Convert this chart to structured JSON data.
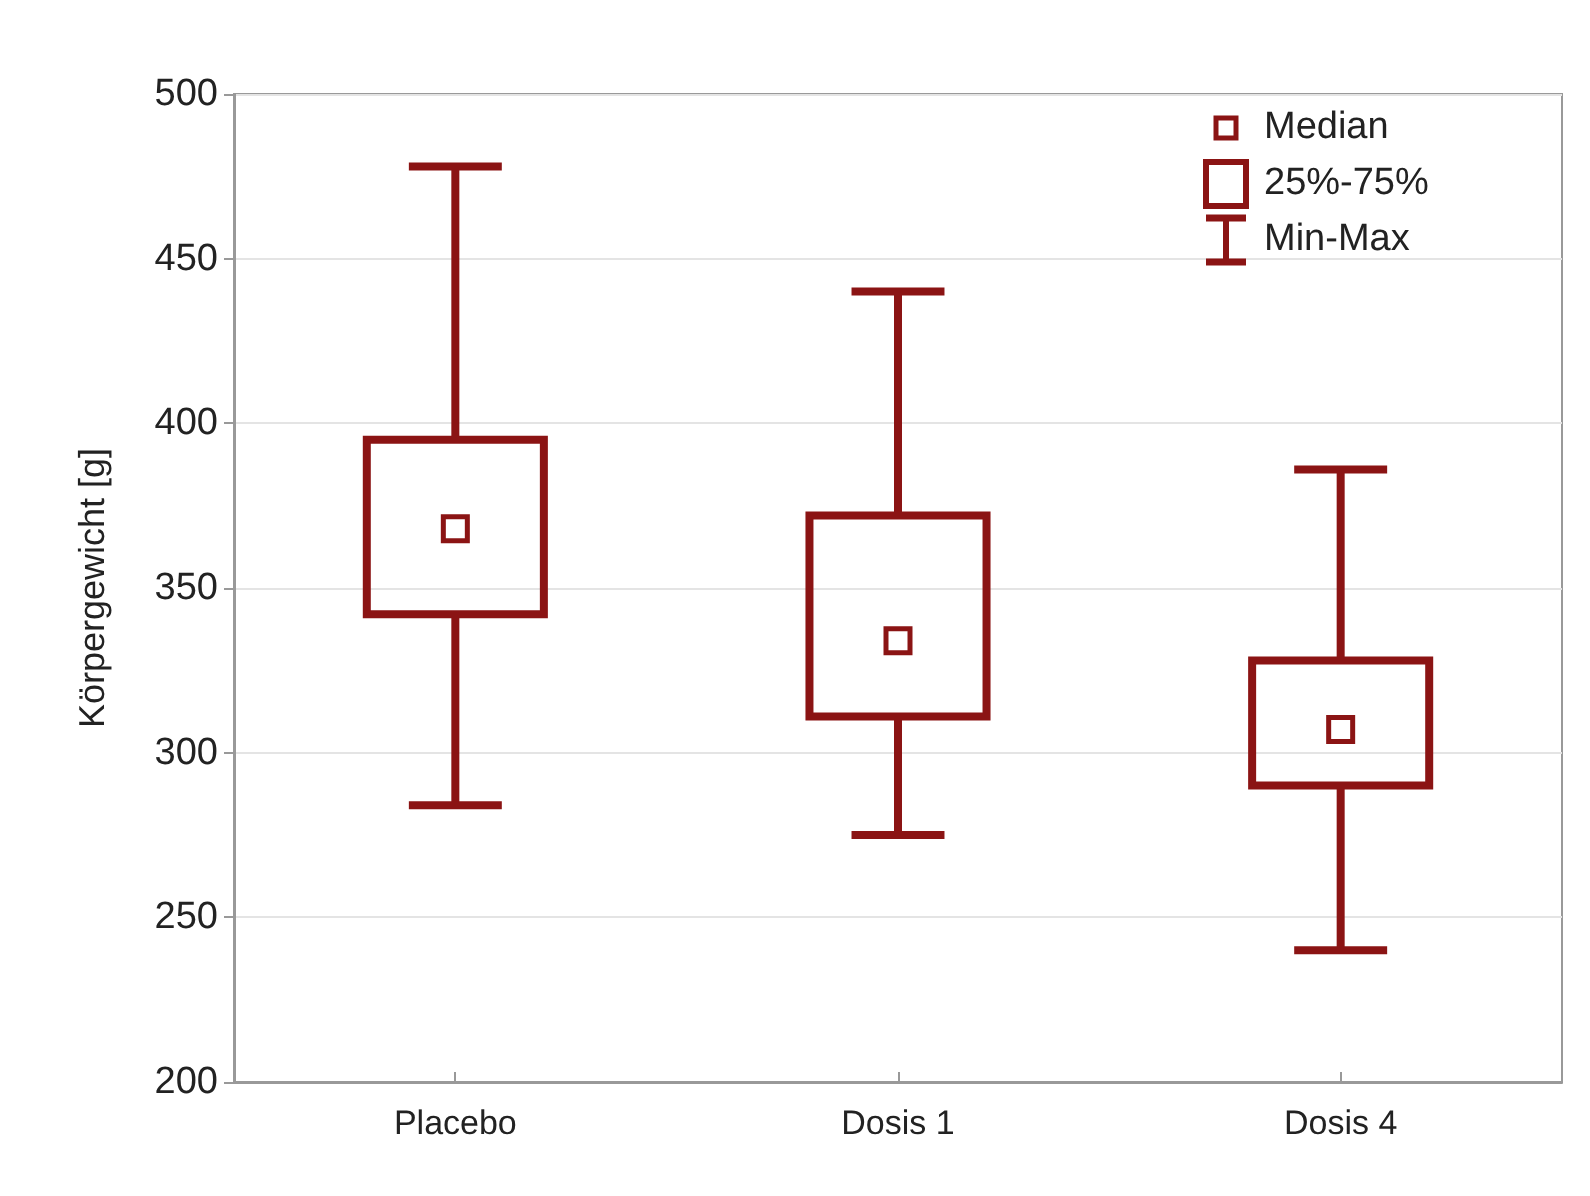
{
  "chart_data": {
    "type": "box",
    "ylabel": "Körpergewicht [g]",
    "categories": [
      "Placebo",
      "Dosis 1",
      "Dosis 4"
    ],
    "boxes": [
      {
        "low": 284,
        "q1": 342,
        "median": 368,
        "q3": 395,
        "high": 478
      },
      {
        "low": 275,
        "q1": 311,
        "median": 334,
        "q3": 372,
        "high": 440
      },
      {
        "low": 240,
        "q1": 290,
        "median": 307,
        "q3": 328,
        "high": 386
      }
    ],
    "color": "#8b1414",
    "ylim": [
      200,
      500
    ],
    "yticks": [
      200,
      250,
      300,
      350,
      400,
      450,
      500
    ],
    "grid": "y",
    "annotations": [
      "Median",
      "25%-75%",
      "Min-Max"
    ]
  }
}
